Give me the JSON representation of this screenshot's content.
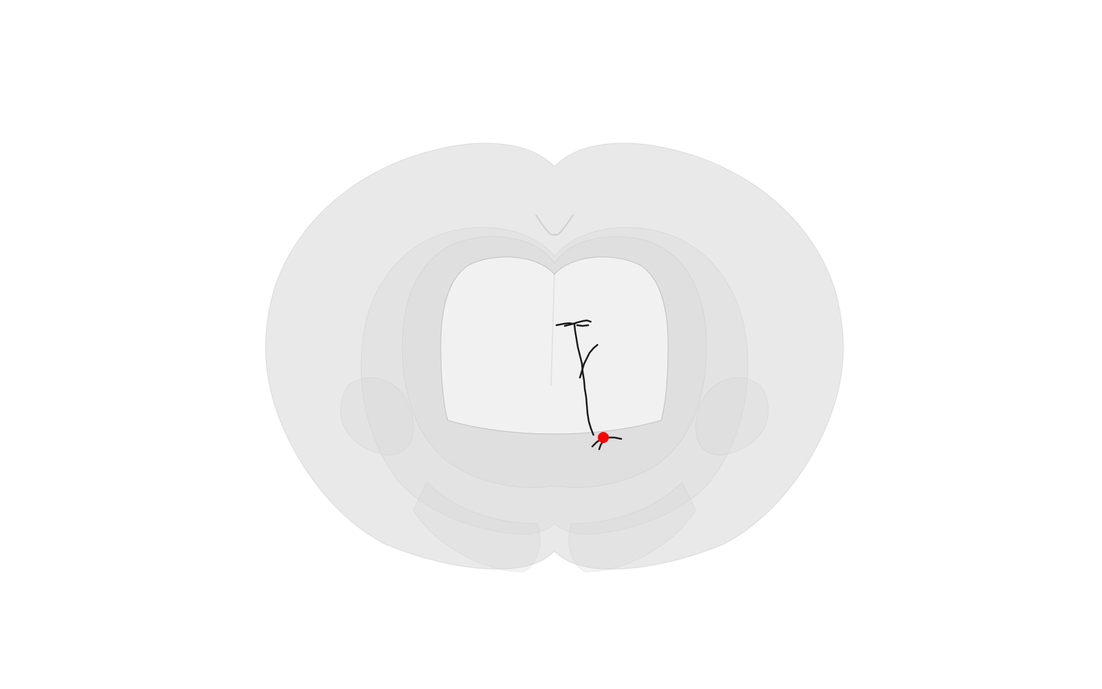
{
  "scene": {
    "type": "brain-3d-render",
    "view": "coronal",
    "background_color": "#ffffff",
    "shell_color": "#d8d8d8",
    "shell_outline_color": "#bdbdbd",
    "neuron_color": "#1a1a1a",
    "soma_color": "#ff0000",
    "structures": [
      {
        "name": "whole-brain-shell"
      },
      {
        "name": "inner-region-shell-back"
      },
      {
        "name": "inner-region-shell-front"
      },
      {
        "name": "thalamus-region-shell"
      }
    ],
    "neuron": {
      "icon": "neuron-morphology",
      "soma_icon": "soma-dot"
    }
  }
}
